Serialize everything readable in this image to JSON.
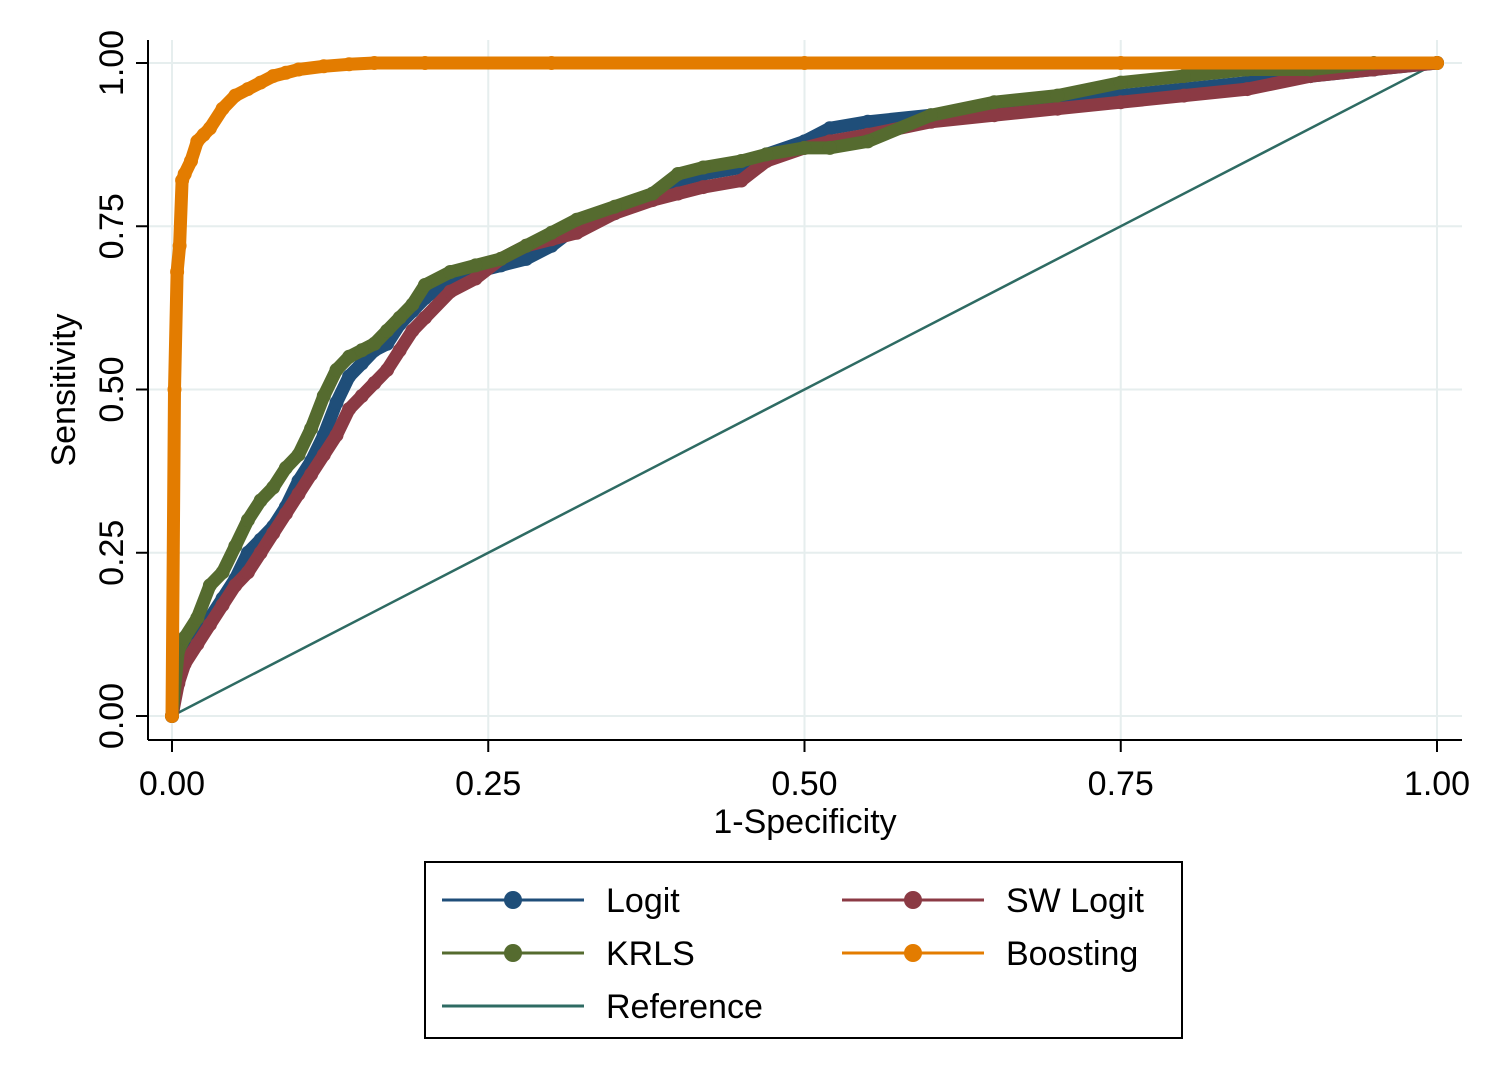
{
  "chart_data": {
    "type": "line",
    "xlabel": "1-Specificity",
    "ylabel": "Sensitivity",
    "xlim": [
      0,
      1
    ],
    "ylim": [
      0,
      1
    ],
    "xticks": [
      "0.00",
      "0.25",
      "0.50",
      "0.75",
      "1.00"
    ],
    "yticks": [
      "0.00",
      "0.25",
      "0.50",
      "0.75",
      "1.00"
    ],
    "grid": true,
    "legend_position": "bottom",
    "series": [
      {
        "name": "Logit",
        "color": "#1f4e79",
        "marker": true,
        "x": [
          0,
          0.005,
          0.01,
          0.02,
          0.03,
          0.04,
          0.05,
          0.06,
          0.07,
          0.08,
          0.09,
          0.1,
          0.11,
          0.12,
          0.13,
          0.14,
          0.15,
          0.16,
          0.17,
          0.18,
          0.19,
          0.2,
          0.22,
          0.24,
          0.26,
          0.28,
          0.3,
          0.32,
          0.35,
          0.38,
          0.4,
          0.42,
          0.45,
          0.47,
          0.5,
          0.52,
          0.55,
          0.6,
          0.65,
          0.7,
          0.75,
          0.8,
          0.85,
          0.9,
          0.95,
          1.0
        ],
        "y": [
          0,
          0.06,
          0.09,
          0.12,
          0.15,
          0.18,
          0.21,
          0.25,
          0.27,
          0.29,
          0.32,
          0.36,
          0.39,
          0.43,
          0.48,
          0.52,
          0.54,
          0.56,
          0.57,
          0.6,
          0.62,
          0.64,
          0.67,
          0.68,
          0.69,
          0.7,
          0.72,
          0.75,
          0.77,
          0.8,
          0.82,
          0.83,
          0.84,
          0.86,
          0.88,
          0.9,
          0.91,
          0.92,
          0.93,
          0.94,
          0.95,
          0.96,
          0.97,
          0.98,
          0.99,
          1.0
        ]
      },
      {
        "name": "SW Logit",
        "color": "#8b3a44",
        "marker": true,
        "x": [
          0,
          0.005,
          0.01,
          0.02,
          0.03,
          0.04,
          0.05,
          0.06,
          0.07,
          0.08,
          0.09,
          0.1,
          0.11,
          0.12,
          0.13,
          0.14,
          0.15,
          0.16,
          0.17,
          0.18,
          0.19,
          0.2,
          0.22,
          0.24,
          0.26,
          0.28,
          0.3,
          0.32,
          0.35,
          0.38,
          0.4,
          0.42,
          0.45,
          0.47,
          0.5,
          0.52,
          0.55,
          0.6,
          0.65,
          0.7,
          0.75,
          0.8,
          0.85,
          0.9,
          0.95,
          1.0
        ],
        "y": [
          0,
          0.05,
          0.08,
          0.11,
          0.14,
          0.17,
          0.2,
          0.22,
          0.25,
          0.28,
          0.31,
          0.34,
          0.37,
          0.4,
          0.43,
          0.47,
          0.49,
          0.51,
          0.53,
          0.56,
          0.59,
          0.61,
          0.65,
          0.67,
          0.7,
          0.72,
          0.73,
          0.74,
          0.77,
          0.79,
          0.8,
          0.81,
          0.82,
          0.85,
          0.87,
          0.88,
          0.89,
          0.91,
          0.92,
          0.93,
          0.94,
          0.95,
          0.96,
          0.98,
          0.99,
          1.0
        ]
      },
      {
        "name": "KRLS",
        "color": "#556b2f",
        "marker": true,
        "x": [
          0,
          0.005,
          0.01,
          0.02,
          0.03,
          0.04,
          0.05,
          0.06,
          0.07,
          0.08,
          0.09,
          0.1,
          0.11,
          0.12,
          0.13,
          0.14,
          0.15,
          0.16,
          0.17,
          0.18,
          0.19,
          0.2,
          0.22,
          0.24,
          0.26,
          0.28,
          0.3,
          0.32,
          0.35,
          0.38,
          0.4,
          0.42,
          0.45,
          0.47,
          0.5,
          0.52,
          0.55,
          0.6,
          0.65,
          0.7,
          0.75,
          0.8,
          0.85,
          0.9,
          0.95,
          1.0
        ],
        "y": [
          0,
          0.1,
          0.12,
          0.15,
          0.2,
          0.22,
          0.26,
          0.3,
          0.33,
          0.35,
          0.38,
          0.4,
          0.44,
          0.49,
          0.53,
          0.55,
          0.56,
          0.57,
          0.59,
          0.61,
          0.63,
          0.66,
          0.68,
          0.69,
          0.7,
          0.72,
          0.74,
          0.76,
          0.78,
          0.8,
          0.83,
          0.84,
          0.85,
          0.86,
          0.87,
          0.87,
          0.88,
          0.92,
          0.94,
          0.95,
          0.97,
          0.98,
          0.99,
          0.99,
          1.0,
          1.0
        ]
      },
      {
        "name": "Boosting",
        "color": "#e37c00",
        "marker": true,
        "x": [
          0,
          0.002,
          0.004,
          0.006,
          0.008,
          0.01,
          0.015,
          0.02,
          0.025,
          0.03,
          0.04,
          0.05,
          0.06,
          0.07,
          0.08,
          0.09,
          0.1,
          0.12,
          0.14,
          0.16,
          0.2,
          0.3,
          0.5,
          0.75,
          1.0
        ],
        "y": [
          0,
          0.5,
          0.68,
          0.72,
          0.82,
          0.83,
          0.85,
          0.88,
          0.89,
          0.9,
          0.93,
          0.95,
          0.96,
          0.97,
          0.98,
          0.985,
          0.99,
          0.995,
          0.998,
          1.0,
          1.0,
          1.0,
          1.0,
          1.0,
          1.0
        ]
      },
      {
        "name": "Reference",
        "color": "#2e6b63",
        "marker": false,
        "x": [
          0,
          1
        ],
        "y": [
          0,
          1
        ]
      }
    ]
  }
}
